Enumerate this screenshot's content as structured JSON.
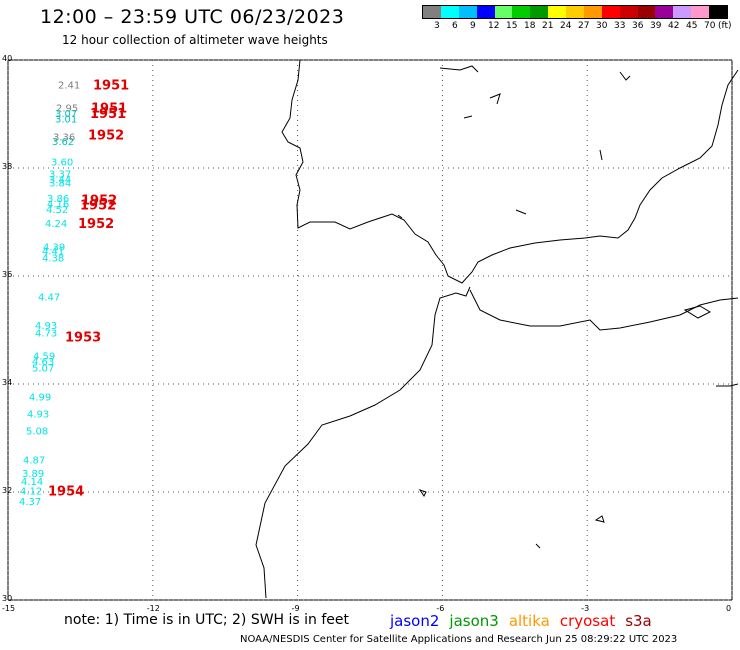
{
  "header": {
    "title": "12:00 – 23:59 UTC 06/23/2023",
    "subtitle": "12 hour collection of altimeter wave heights"
  },
  "legend": {
    "colors": [
      "#808080",
      "#00ffff",
      "#00bfff",
      "#0000ff",
      "#66ff66",
      "#00cc00",
      "#009900",
      "#ffff00",
      "#ffcc00",
      "#ff9900",
      "#ff0000",
      "#cc0000",
      "#990000",
      "#990099",
      "#cc99ff",
      "#ff99cc",
      "#000000"
    ],
    "labels": [
      "3",
      "6",
      "9",
      "12",
      "15",
      "18",
      "21",
      "24",
      "27",
      "30",
      "33",
      "36",
      "39",
      "42",
      "45",
      "70",
      "(ft)"
    ]
  },
  "axes": {
    "lat_labels": [
      "40",
      "38",
      "36",
      "34",
      "32",
      "30"
    ],
    "lon_labels": [
      "-15",
      "-12",
      "-9",
      "-6",
      "-3",
      "0"
    ]
  },
  "swh_points": [
    {
      "value": "2.41",
      "lat": 39.55,
      "color": "#808080"
    },
    {
      "value": "2.95",
      "lat": 39.12,
      "color": "#808080"
    },
    {
      "value": "3.07",
      "lat": 39.02,
      "color": "#00bfbf"
    },
    {
      "value": "3.01",
      "lat": 38.92,
      "color": "#00bfbf"
    },
    {
      "value": "3.36",
      "lat": 38.58,
      "color": "#808080"
    },
    {
      "value": "3.62",
      "lat": 38.5,
      "color": "#00bfbf"
    },
    {
      "value": "3.60",
      "lat": 38.12,
      "color": "#00e5e5"
    },
    {
      "value": "3.37",
      "lat": 37.9,
      "color": "#00e5e5"
    },
    {
      "value": "3.44",
      "lat": 37.8,
      "color": "#00e5e5"
    },
    {
      "value": "3.84",
      "lat": 37.73,
      "color": "#00e5e5"
    },
    {
      "value": "3.86",
      "lat": 37.44,
      "color": "#00e5e5"
    },
    {
      "value": "4.16",
      "lat": 37.34,
      "color": "#00e5e5"
    },
    {
      "value": "4.52",
      "lat": 37.24,
      "color": "#00e5e5"
    },
    {
      "value": "4.24",
      "lat": 36.98,
      "color": "#00e5e5"
    },
    {
      "value": "4.39",
      "lat": 36.55,
      "color": "#00e5e5"
    },
    {
      "value": "4.41",
      "lat": 36.47,
      "color": "#00e5e5"
    },
    {
      "value": "4.38",
      "lat": 36.34,
      "color": "#00e5e5"
    },
    {
      "value": "4.47",
      "lat": 35.62,
      "color": "#00e5e5"
    },
    {
      "value": "4.93",
      "lat": 35.09,
      "color": "#00e5e5"
    },
    {
      "value": "4.73",
      "lat": 34.95,
      "color": "#00e5e5"
    },
    {
      "value": "4.59",
      "lat": 34.53,
      "color": "#00e5e5"
    },
    {
      "value": "4.63",
      "lat": 34.43,
      "color": "#00e5e5"
    },
    {
      "value": "5.07",
      "lat": 34.31,
      "color": "#00e5e5"
    },
    {
      "value": "4.99",
      "lat": 33.77,
      "color": "#00e5e5"
    },
    {
      "value": "4.93",
      "lat": 33.45,
      "color": "#00e5e5"
    },
    {
      "value": "5.08",
      "lat": 33.14,
      "color": "#00e5e5"
    },
    {
      "value": "4.87",
      "lat": 32.6,
      "color": "#00e5e5"
    },
    {
      "value": "3.89",
      "lat": 32.35,
      "color": "#00e5e5"
    },
    {
      "value": "4.14",
      "lat": 32.2,
      "color": "#00e5e5"
    },
    {
      "value": "4.12",
      "lat": 32.03,
      "color": "#00e5e5"
    },
    {
      "value": "4.37",
      "lat": 31.83,
      "color": "#00e5e5"
    }
  ],
  "pass_times": [
    {
      "time": "1951",
      "lat": 39.55
    },
    {
      "time": "1951",
      "lat": 39.12
    },
    {
      "time": "1951",
      "lat": 39.02
    },
    {
      "time": "1952",
      "lat": 38.62
    },
    {
      "time": "1952",
      "lat": 37.42
    },
    {
      "time": "1952",
      "lat": 37.32
    },
    {
      "time": "1952",
      "lat": 36.98
    },
    {
      "time": "1953",
      "lat": 34.88
    },
    {
      "time": "1954",
      "lat": 32.03
    }
  ],
  "note": "note:  1) Time is in UTC;  2) SWH is in feet",
  "satellites": [
    {
      "name": "jason2",
      "color": "#0000ff"
    },
    {
      "name": "jason3",
      "color": "#009900"
    },
    {
      "name": "altika",
      "color": "#ff9900"
    },
    {
      "name": "cryosat",
      "color": "#ff0000"
    },
    {
      "name": "s3a",
      "color": "#990000"
    }
  ],
  "footer": "NOAA/NESDIS Center for Satellite Applications and Research     Jun 25 08:29:22 UTC 2023"
}
